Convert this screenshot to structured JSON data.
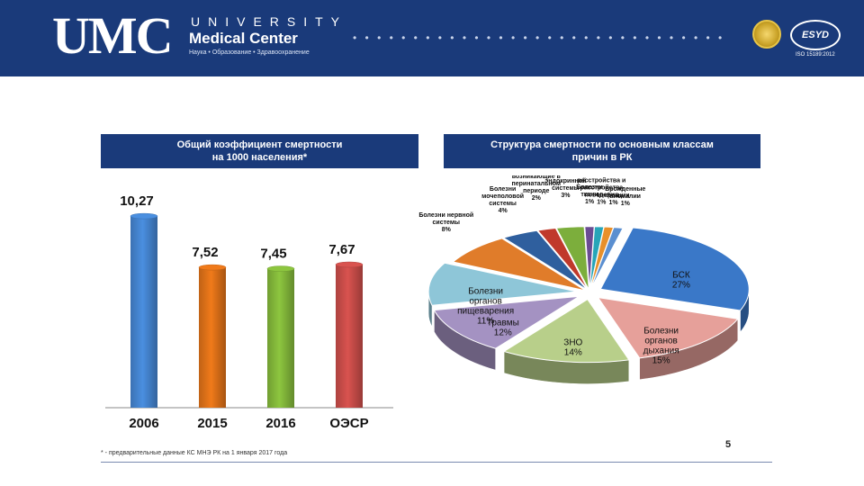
{
  "header": {
    "logo_abbr": "UMC",
    "logo_university": "UNIVERSITY",
    "logo_name": "Medical Center",
    "logo_tagline": "Наука • Образование • Здравоохранение",
    "badge_right": "ESYD",
    "badge_right_sub": "ISO 15189:2012",
    "colors": {
      "brand": "#1a3a7a"
    }
  },
  "bar_panel": {
    "title_line1": "Общий коэффициент смертности",
    "title_line2": "на 1000 населения*"
  },
  "pie_panel": {
    "title_line1": "Структура смертности по основным классам",
    "title_line2": "причин в РК"
  },
  "chart_data": [
    {
      "type": "bar",
      "title": "Общий коэффициент смертности на 1000 населения*",
      "categories": [
        "2006",
        "2015",
        "2016",
        "ОЭСР"
      ],
      "values": [
        10.27,
        7.52,
        7.45,
        7.67
      ],
      "data_labels": [
        "10,27",
        "7,52",
        "7,45",
        "7,67"
      ],
      "colors": [
        "#4a8fe0",
        "#f07a1a",
        "#8dc63f",
        "#d9534f"
      ],
      "ylim": [
        0,
        11
      ],
      "grid": false,
      "xlabel": "",
      "ylabel": ""
    },
    {
      "type": "pie",
      "title": "Структура смертности по основным классам причин в РК",
      "slices": [
        {
          "label": [
            "БСК"
          ],
          "pct": "27%",
          "value": 27,
          "color": "#3a78c8"
        },
        {
          "label": [
            "Болезни",
            "органов",
            "дыхания"
          ],
          "pct": "15%",
          "value": 15,
          "color": "#e6a09a"
        },
        {
          "label": [
            "ЗНО"
          ],
          "pct": "14%",
          "value": 14,
          "color": "#b8cf8a"
        },
        {
          "label": [
            "Травмы"
          ],
          "pct": "12%",
          "value": 12,
          "color": "#a492c2"
        },
        {
          "label": [
            "Болезни",
            "органов",
            "пищеварения"
          ],
          "pct": "11%",
          "value": 11,
          "color": "#8ec6d8"
        },
        {
          "label": [
            "Болезни нервной",
            "системы"
          ],
          "pct": "8%",
          "value": 8,
          "color": "#e07c2a"
        },
        {
          "label": [
            "Болезни",
            "мочеполовой",
            "системы"
          ],
          "pct": "4%",
          "value": 4,
          "color": "#2f5f9e"
        },
        {
          "label": [
            "Состояния",
            "возникающие в",
            "перинатальном",
            "периоде"
          ],
          "pct": "2%",
          "value": 2,
          "color": "#c0392b"
        },
        {
          "label": [
            "Болезни",
            "эндокринной",
            "системы"
          ],
          "pct": "3%",
          "value": 3,
          "color": "#7cae3c"
        },
        {
          "label": [
            "Болезни",
            "ткани"
          ],
          "pct": "1%",
          "value": 1,
          "color": "#6a4c93"
        },
        {
          "label": [
            "Психические",
            "расстройства и",
            "расстройства",
            "поведения"
          ],
          "pct": "1%",
          "value": 1,
          "color": "#27a5b8"
        },
        {
          "label": [
            "Инфекции"
          ],
          "pct": "1%",
          "value": 1,
          "color": "#e8902a"
        },
        {
          "label": [
            "Врожденные",
            "аномалии"
          ],
          "pct": "1%",
          "value": 1,
          "color": "#5b8fd0"
        }
      ]
    }
  ],
  "footnote": "* - предварительные данные КС МНЭ РК на 1 января 2017 года",
  "page_number": "5"
}
